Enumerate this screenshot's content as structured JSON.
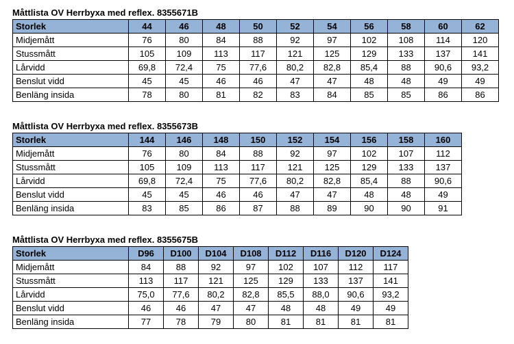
{
  "tables": [
    {
      "title": "Måttlista OV Herrbyxa med reflex. 8355671B",
      "header": {
        "label": "Storlek",
        "sizes": [
          "44",
          "46",
          "48",
          "50",
          "52",
          "54",
          "56",
          "58",
          "60",
          "62"
        ]
      },
      "rows": [
        {
          "label": "Midjemått",
          "values": [
            "76",
            "80",
            "84",
            "88",
            "92",
            "97",
            "102",
            "108",
            "114",
            "120"
          ]
        },
        {
          "label": "Stussmått",
          "values": [
            "105",
            "109",
            "113",
            "117",
            "121",
            "125",
            "129",
            "133",
            "137",
            "141"
          ]
        },
        {
          "label": "Lårvidd",
          "values": [
            "69,8",
            "72,4",
            "75",
            "77,6",
            "80,2",
            "82,8",
            "85,4",
            "88",
            "90,6",
            "93,2"
          ]
        },
        {
          "label": "Benslut vidd",
          "values": [
            "45",
            "45",
            "46",
            "46",
            "47",
            "47",
            "48",
            "48",
            "49",
            "49"
          ]
        },
        {
          "label": "Benläng insida",
          "values": [
            "78",
            "80",
            "81",
            "82",
            "83",
            "84",
            "85",
            "85",
            "86",
            "86"
          ]
        }
      ]
    },
    {
      "title": "Måttlista OV Herrbyxa med reflex. 8355673B",
      "header": {
        "label": "Storlek",
        "sizes": [
          "144",
          "146",
          "148",
          "150",
          "152",
          "154",
          "156",
          "158",
          "160"
        ]
      },
      "rows": [
        {
          "label": "Midjemått",
          "values": [
            "76",
            "80",
            "84",
            "88",
            "92",
            "97",
            "102",
            "107",
            "112"
          ]
        },
        {
          "label": "Stussmått",
          "values": [
            "105",
            "109",
            "113",
            "117",
            "121",
            "125",
            "129",
            "133",
            "137"
          ]
        },
        {
          "label": "Lårvidd",
          "values": [
            "69,8",
            "72,4",
            "75",
            "77,6",
            "80,2",
            "82,8",
            "85,4",
            "88",
            "90,6"
          ]
        },
        {
          "label": "Benslut vidd",
          "values": [
            "45",
            "45",
            "46",
            "46",
            "47",
            "47",
            "48",
            "48",
            "49"
          ]
        },
        {
          "label": "Benläng insida",
          "values": [
            "83",
            "85",
            "86",
            "87",
            "88",
            "89",
            "90",
            "90",
            "91"
          ]
        }
      ]
    },
    {
      "title": "Måttlista OV Herrbyxa med reflex. 8355675B",
      "header": {
        "label": "Storlek",
        "sizes": [
          "D96",
          "D100",
          "D104",
          "D108",
          "D112",
          "D116",
          "D120",
          "D124"
        ]
      },
      "rows": [
        {
          "label": "Midjemått",
          "values": [
            "84",
            "88",
            "92",
            "97",
            "102",
            "107",
            "112",
            "117"
          ]
        },
        {
          "label": "Stussmått",
          "values": [
            "113",
            "117",
            "121",
            "125",
            "129",
            "133",
            "137",
            "141"
          ]
        },
        {
          "label": "Lårvidd",
          "values": [
            "75,0",
            "77,6",
            "80,2",
            "82,8",
            "85,5",
            "88,0",
            "90,6",
            "93,2"
          ]
        },
        {
          "label": "Benslut vidd",
          "values": [
            "46",
            "46",
            "47",
            "47",
            "48",
            "48",
            "49",
            "49"
          ]
        },
        {
          "label": "Benläng insida",
          "values": [
            "77",
            "78",
            "79",
            "80",
            "81",
            "81",
            "81",
            "81"
          ]
        }
      ]
    }
  ],
  "colors": {
    "header_background": "#95b3d7",
    "border": "#000000"
  }
}
